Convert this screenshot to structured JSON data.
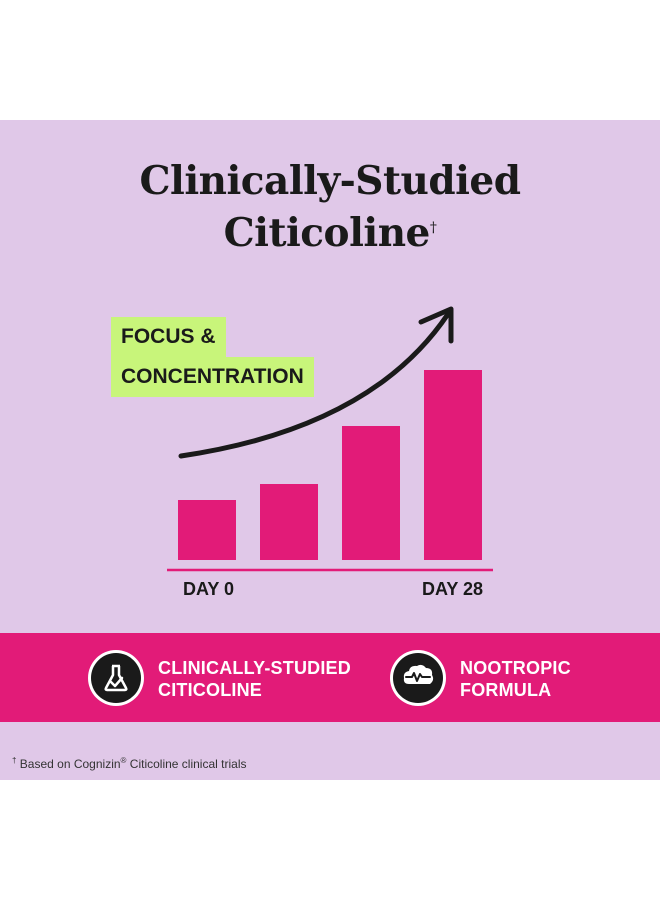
{
  "colors": {
    "background": "#e0c8e8",
    "bar": "#e21b78",
    "band": "#e21b78",
    "label_box": "#c8f57a",
    "arrow": "#1a1a1a"
  },
  "header": {
    "title_line1": "Clinically-Studied",
    "title_line2": "Citicoline",
    "title_mark": "†"
  },
  "chart_data": {
    "type": "bar",
    "title": "FOCUS & CONCENTRATION",
    "title_lines": [
      "FOCUS &",
      "CONCENTRATION"
    ],
    "categories": [
      "DAY 0",
      "",
      "",
      "DAY 28"
    ],
    "tick_labels": [
      "DAY 0",
      "DAY 28"
    ],
    "values": [
      30,
      38,
      67,
      95
    ],
    "ylim": [
      0,
      100
    ],
    "grid": false,
    "legend": "none",
    "annotation": "upward-trend-arrow"
  },
  "band": {
    "items": [
      {
        "line1": "CLINICALLY-STUDIED",
        "line2": "CITICOLINE",
        "icon": "flask-check-icon"
      },
      {
        "line1": "NOOTROPIC",
        "line2": "FORMULA",
        "icon": "brain-pulse-icon"
      }
    ]
  },
  "footnote": {
    "mark": "†",
    "text_before": "Based on Cognizin",
    "reg": "®",
    "text_after": "Citicoline clinical trials"
  }
}
